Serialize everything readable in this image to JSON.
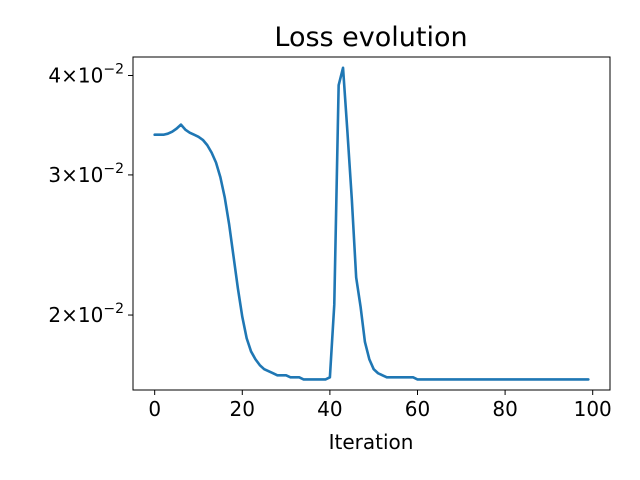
{
  "chart_data": {
    "type": "line",
    "title": "Loss evolution",
    "xlabel": "Iteration",
    "ylabel": "",
    "yscale": "log",
    "xlim": [
      -4.95,
      103.95
    ],
    "ylim": [
      0.0161,
      0.0422
    ],
    "x_ticks": [
      0,
      20,
      40,
      60,
      80,
      100
    ],
    "x_tick_labels": [
      "0",
      "20",
      "40",
      "60",
      "80",
      "100"
    ],
    "y_ticks": [
      {
        "value": 0.02,
        "coef": "2",
        "exp": "−2"
      },
      {
        "value": 0.03,
        "coef": "3",
        "exp": "−2"
      },
      {
        "value": 0.04,
        "coef": "4",
        "exp": "−2"
      }
    ],
    "grid": false,
    "legend": "none",
    "colors": {
      "series": "#1f77b4"
    },
    "series": [
      {
        "x": [
          0,
          1,
          2,
          3,
          4,
          5,
          6,
          7,
          8,
          9,
          10,
          11,
          12,
          13,
          14,
          15,
          16,
          17,
          18,
          19,
          20,
          21,
          22,
          23,
          24,
          25,
          26,
          27,
          28,
          29,
          30,
          31,
          32,
          33,
          34,
          35,
          36,
          37,
          38,
          39,
          40,
          41,
          42,
          43,
          44,
          45,
          46,
          47,
          48,
          49,
          50,
          51,
          52,
          53,
          54,
          55,
          56,
          57,
          58,
          59,
          60,
          61,
          62,
          63,
          64,
          65,
          66,
          67,
          68,
          69,
          70,
          71,
          72,
          73,
          74,
          75,
          76,
          77,
          78,
          79,
          80,
          81,
          82,
          83,
          84,
          85,
          86,
          87,
          88,
          89,
          90,
          91,
          92,
          93,
          94,
          95,
          96,
          97,
          98,
          99
        ],
        "y": [
          0.0337,
          0.0337,
          0.0337,
          0.0338,
          0.034,
          0.0343,
          0.0347,
          0.0342,
          0.0339,
          0.0337,
          0.0335,
          0.0332,
          0.0327,
          0.032,
          0.0311,
          0.0298,
          0.0281,
          0.026,
          0.0237,
          0.0216,
          0.0199,
          0.0187,
          0.018,
          0.0176,
          0.0173,
          0.0171,
          0.017,
          0.0169,
          0.0168,
          0.0168,
          0.0168,
          0.0167,
          0.0167,
          0.0167,
          0.0166,
          0.0166,
          0.0166,
          0.0166,
          0.0166,
          0.0166,
          0.0167,
          0.0206,
          0.0389,
          0.0409,
          0.034,
          0.028,
          0.0223,
          0.0205,
          0.0185,
          0.0176,
          0.0171,
          0.0169,
          0.0168,
          0.0167,
          0.0167,
          0.0167,
          0.0167,
          0.0167,
          0.0167,
          0.0167,
          0.0166,
          0.0166,
          0.0166,
          0.0166,
          0.0166,
          0.0166,
          0.0166,
          0.0166,
          0.0166,
          0.0166,
          0.0166,
          0.0166,
          0.0166,
          0.0166,
          0.0166,
          0.0166,
          0.0166,
          0.0166,
          0.0166,
          0.0166,
          0.0166,
          0.0166,
          0.0166,
          0.0166,
          0.0166,
          0.0166,
          0.0166,
          0.0166,
          0.0166,
          0.0166,
          0.0166,
          0.0166,
          0.0166,
          0.0166,
          0.0166,
          0.0166,
          0.0166,
          0.0166,
          0.0166,
          0.0166
        ]
      }
    ]
  }
}
